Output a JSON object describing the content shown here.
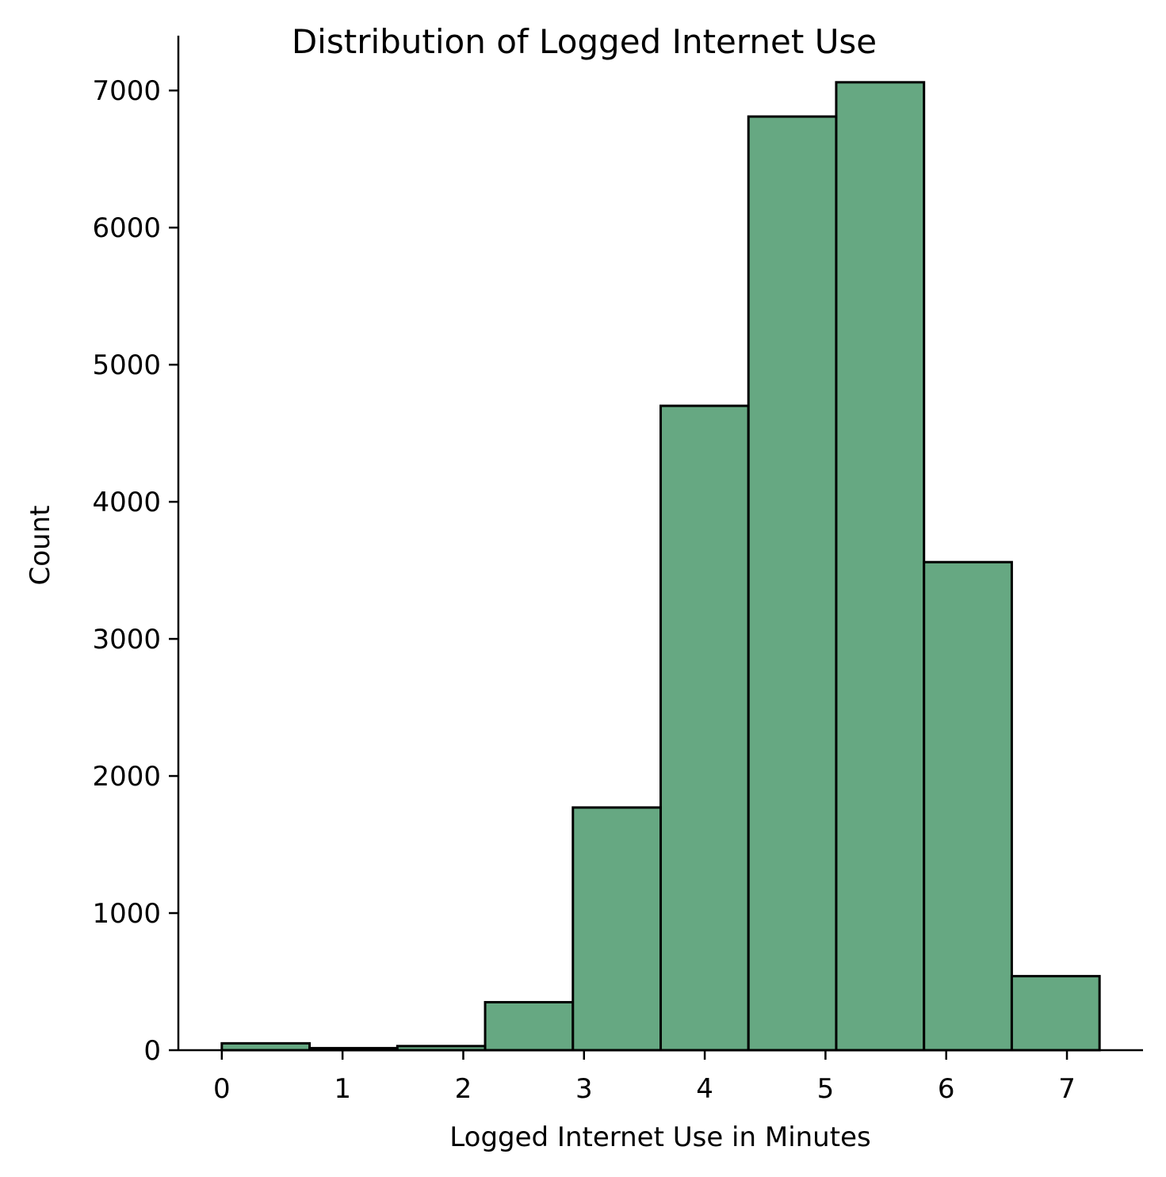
{
  "chart_data": {
    "type": "bar",
    "title": "Distribution of Logged Internet Use",
    "xlabel": "Logged Internet Use in Minutes",
    "ylabel": "Count",
    "bar_color": "#66a882",
    "edge_color": "#000000",
    "bin_edges": [
      0.0,
      0.727,
      1.454,
      2.181,
      2.908,
      3.635,
      4.362,
      5.089,
      5.816,
      6.543,
      7.27
    ],
    "values": [
      50,
      15,
      30,
      350,
      1770,
      4700,
      6810,
      7060,
      3560,
      540
    ],
    "xlim": [
      -0.36,
      7.63
    ],
    "ylim": [
      0,
      7400
    ],
    "xticks": [
      0,
      1,
      2,
      3,
      4,
      5,
      6,
      7
    ],
    "yticks": [
      0,
      1000,
      2000,
      3000,
      4000,
      5000,
      6000,
      7000
    ],
    "grid": false,
    "legend": "none"
  }
}
